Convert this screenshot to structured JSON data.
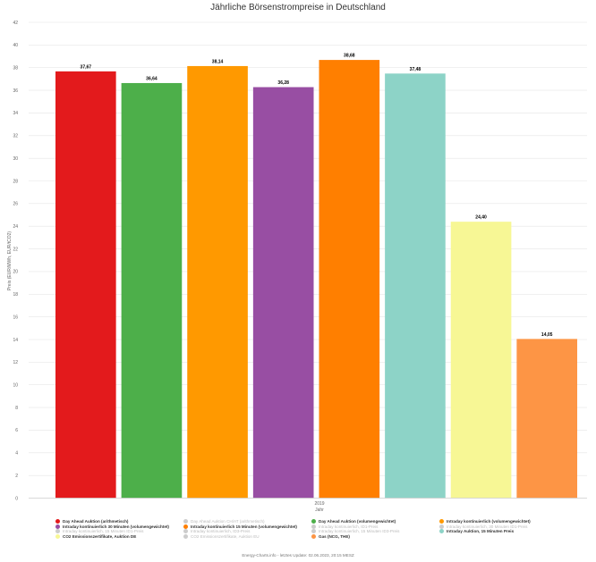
{
  "chart_data": {
    "type": "bar",
    "title": "Jährliche Börsenstrompreise in Deutschland",
    "ylabel": "Preis (EUR/MWh, EUR/tCO2)",
    "xlabel": "Jahr",
    "categories": [
      "2019"
    ],
    "ylim": [
      0,
      42
    ],
    "yticks": [
      0,
      2,
      4,
      6,
      8,
      10,
      12,
      14,
      16,
      18,
      20,
      22,
      24,
      26,
      28,
      30,
      32,
      34,
      36,
      38,
      40,
      42
    ],
    "grid": true,
    "legend_position": "bottom",
    "series": [
      {
        "name": "Day Ahead Auktion (arithmetisch)",
        "values": [
          37.67
        ],
        "label": "37,67",
        "color": "#e31a1c",
        "visible": true
      },
      {
        "name": "Day Ahead Auktion (volumengewichtet)",
        "values": [
          36.64
        ],
        "label": "36,64",
        "color": "#4daf4a",
        "visible": true
      },
      {
        "name": "Intraday kontinuierlich (volumengewichtet)",
        "values": [
          38.14
        ],
        "label": "38,14",
        "color": "#ff9900",
        "visible": true
      },
      {
        "name": "Intraday kontinuierlich 30 Minuten (volumengewichtet)",
        "values": [
          36.28
        ],
        "label": "36,28",
        "color": "#984ea3",
        "visible": true
      },
      {
        "name": "Intraday kontinuierlich 15 Minuten (volumengewichtet)",
        "values": [
          38.68
        ],
        "label": "38,68",
        "color": "#ff7f00",
        "visible": true
      },
      {
        "name": "Intraday Auktion, 15 Minuten Preis",
        "values": [
          37.48
        ],
        "label": "37,48",
        "color": "#8dd3c7",
        "visible": true
      },
      {
        "name": "CO2 Emissionszertifikate, Auktion DE",
        "values": [
          24.4
        ],
        "label": "24,40",
        "color": "#f7f795",
        "visible": true
      },
      {
        "name": "Gas (NCG, THE)",
        "values": [
          14.05
        ],
        "label": "14,05",
        "color": "#fd9545",
        "visible": true
      }
    ]
  },
  "legend": [
    {
      "name": "Day Ahead Auktion (arithmetisch)",
      "color": "#e31a1c",
      "visible": true
    },
    {
      "name": "Day Ahead Auktion CH/AT (arithmetisch)",
      "color": "#cccccc",
      "visible": false
    },
    {
      "name": "Day Ahead Auktion (volumengewichtet)",
      "color": "#4daf4a",
      "visible": true
    },
    {
      "name": "Intraday kontinuierlich (volumengewichtet)",
      "color": "#ff9900",
      "visible": true
    },
    {
      "name": "Intraday kontinuierlich 30 Minuten (volumengewichtet)",
      "color": "#984ea3",
      "visible": true
    },
    {
      "name": "Intraday kontinuierlich 15 Minuten (volumengewichtet)",
      "color": "#ff7f00",
      "visible": true
    },
    {
      "name": "Intraday kontinuierlich, ID1-Preis",
      "color": "#cccccc",
      "visible": false
    },
    {
      "name": "Intraday kontinuierlich, 30 Minuten ID1-Preis",
      "color": "#cccccc",
      "visible": false
    },
    {
      "name": "Intraday kontinuierlich, 15 Minuten ID1-Preis",
      "color": "#cccccc",
      "visible": false
    },
    {
      "name": "Intraday kontinuierlich, ID3-Preis",
      "color": "#cccccc",
      "visible": false
    },
    {
      "name": "Intraday kontinuierlich, 15 Minuten ID3-Preis",
      "color": "#cccccc",
      "visible": false
    },
    {
      "name": "Intraday Auktion, 15 Minuten Preis",
      "color": "#8dd3c7",
      "visible": true
    },
    {
      "name": "CO2 Emissionszertifikate, Auktion DE",
      "color": "#f7f795",
      "visible": true
    },
    {
      "name": "CO2 Emissionszertifikate, Auktion EU",
      "color": "#cccccc",
      "visible": false
    },
    {
      "name": "Gas (NCG, THE)",
      "color": "#fd9545",
      "visible": true
    }
  ],
  "footer": "Energy-Charts.info - letztes Update: 02.06.2023, 20:15 MESZ"
}
